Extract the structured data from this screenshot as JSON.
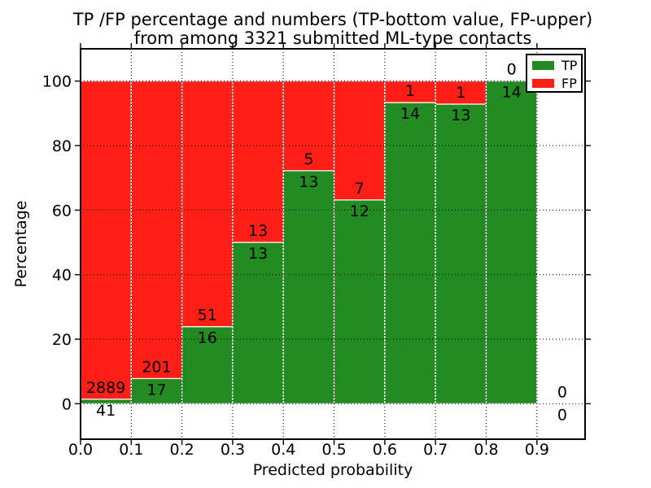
{
  "title": {
    "line1": "TP /FP percentage and numbers (TP-bottom value, FP-upper)",
    "line2": "from among 3321 submitted ML-type contacts"
  },
  "chart_data": {
    "type": "bar",
    "stacked": true,
    "title": "TP /FP percentage and numbers (TP-bottom value, FP-upper)\nfrom among 3321 submitted ML-type contacts",
    "xlabel": "Predicted probability",
    "ylabel": "Percentage",
    "total_contacts": 3321,
    "bins": {
      "start": 0.0,
      "width": 0.1,
      "count": 10
    },
    "categories": [
      "0.0-0.1",
      "0.1-0.2",
      "0.2-0.3",
      "0.3-0.4",
      "0.4-0.5",
      "0.5-0.6",
      "0.6-0.7",
      "0.7-0.8",
      "0.8-0.9",
      "0.9-1.0"
    ],
    "series": [
      {
        "name": "TP",
        "color": "#228b22",
        "counts": [
          41,
          17,
          16,
          13,
          13,
          12,
          14,
          13,
          14,
          0
        ],
        "percent": [
          1.4,
          7.8,
          23.9,
          50.0,
          72.2,
          63.2,
          93.3,
          92.9,
          100.0,
          0.0
        ]
      },
      {
        "name": "FP",
        "color": "#ff1f16",
        "counts": [
          2889,
          201,
          51,
          13,
          5,
          7,
          1,
          1,
          0,
          0
        ],
        "percent": [
          98.6,
          92.2,
          76.1,
          50.0,
          27.8,
          36.8,
          6.7,
          7.1,
          0.0,
          0.0
        ]
      }
    ],
    "annotation_rule": "FP count above TP/FP boundary, TP count below boundary",
    "xticks": [
      "0.0",
      "0.1",
      "0.2",
      "0.3",
      "0.4",
      "0.5",
      "0.6",
      "0.7",
      "0.8",
      "0.9"
    ],
    "yticks": [
      "0",
      "20",
      "40",
      "60",
      "80",
      "100"
    ],
    "xlim": [
      0.0,
      0.995
    ],
    "ylim": [
      -11,
      110
    ],
    "grid": "dotted black",
    "bar_edge_color": "#ffffff",
    "legend": {
      "position": "upper right",
      "entries": [
        {
          "label": "TP",
          "color": "#228b22"
        },
        {
          "label": "FP",
          "color": "#ff1f16"
        }
      ]
    }
  }
}
